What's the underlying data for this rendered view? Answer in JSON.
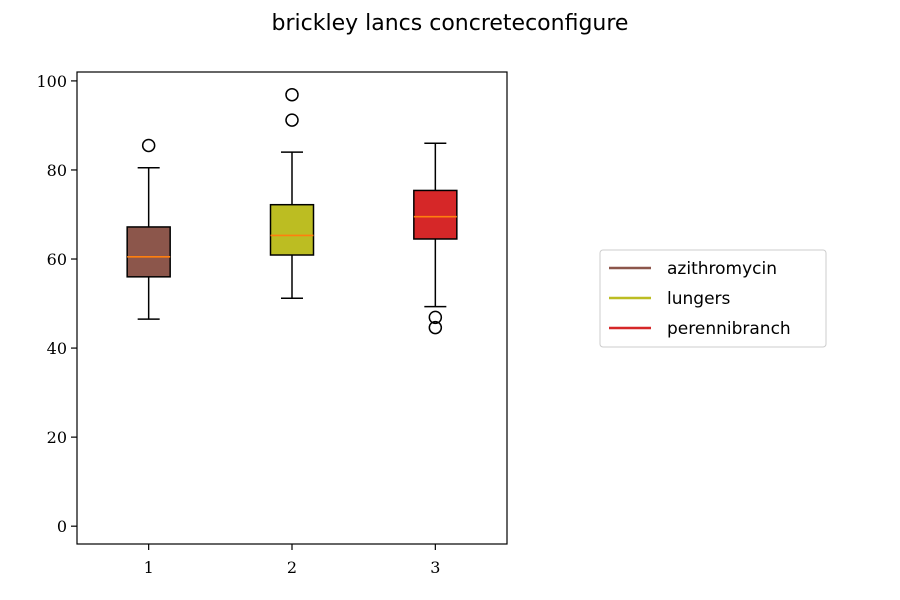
{
  "chart_data": {
    "type": "box",
    "title": "brickley lancs concreteconfigure",
    "xlabel": "",
    "ylabel": "",
    "categories": [
      "1",
      "2",
      "3"
    ],
    "ylim": [
      -4,
      102
    ],
    "yticks": [
      0,
      20,
      40,
      60,
      80,
      100
    ],
    "grid": false,
    "legend_position": "right",
    "series": [
      {
        "name": "azithromycin",
        "color": "#8c564b",
        "whisker_low": 46.5,
        "q1": 56,
        "median": 60.5,
        "q3": 67.2,
        "whisker_high": 80.5,
        "outliers": [
          85.5
        ]
      },
      {
        "name": "lungers",
        "color": "#bcbd22",
        "whisker_low": 51.2,
        "q1": 60.9,
        "median": 65.3,
        "q3": 72.2,
        "whisker_high": 84,
        "outliers": [
          91.2,
          96.9
        ]
      },
      {
        "name": "perennibranch",
        "color": "#d62728",
        "whisker_low": 49.3,
        "q1": 64.5,
        "median": 69.5,
        "q3": 75.4,
        "whisker_high": 86,
        "outliers": [
          46.9,
          44.6
        ]
      }
    ],
    "median_color": "#ff7f0e"
  }
}
